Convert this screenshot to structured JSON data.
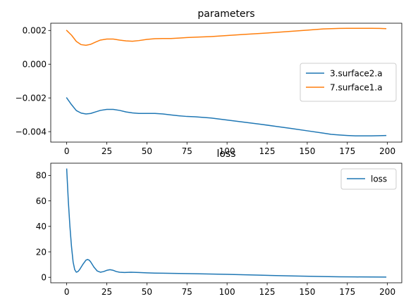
{
  "chart_data": [
    {
      "type": "line",
      "title": "parameters",
      "xlabel": "",
      "ylabel": "",
      "xlim": [
        -9.95,
        208.95
      ],
      "ylim": [
        -0.00462,
        0.00243
      ],
      "xticks": [
        0,
        25,
        50,
        75,
        100,
        125,
        150,
        175,
        200
      ],
      "yticks": [
        0.002,
        0.0,
        -0.002,
        -0.004
      ],
      "ytick_labels": [
        "0.002",
        "0.000",
        "−0.002",
        "−0.004"
      ],
      "grid": false,
      "legend": "center-right",
      "series": [
        {
          "name": "3.surface2.a",
          "color": "#1f77b4",
          "x": [
            0,
            3,
            6,
            9,
            12,
            15,
            18,
            21,
            25,
            29,
            33,
            37,
            41,
            45,
            50,
            55,
            60,
            65,
            70,
            75,
            80,
            90,
            100,
            110,
            120,
            130,
            140,
            150,
            160,
            165,
            170,
            175,
            180,
            185,
            190,
            195,
            199
          ],
          "y": [
            -0.002,
            -0.0024,
            -0.00275,
            -0.0029,
            -0.00295,
            -0.00292,
            -0.00283,
            -0.00274,
            -0.00268,
            -0.00268,
            -0.00274,
            -0.00283,
            -0.00289,
            -0.00292,
            -0.00292,
            -0.00292,
            -0.00295,
            -0.00301,
            -0.00306,
            -0.0031,
            -0.00312,
            -0.00319,
            -0.00331,
            -0.00343,
            -0.00355,
            -0.00368,
            -0.00381,
            -0.00395,
            -0.00409,
            -0.00416,
            -0.0042,
            -0.00423,
            -0.00425,
            -0.00425,
            -0.00425,
            -0.00424,
            -0.00423
          ]
        },
        {
          "name": "7.surface1.a",
          "color": "#ff7f0e",
          "x": [
            0,
            3,
            6,
            9,
            12,
            15,
            18,
            21,
            25,
            29,
            33,
            37,
            41,
            45,
            50,
            55,
            60,
            65,
            70,
            75,
            80,
            90,
            100,
            110,
            120,
            130,
            140,
            150,
            160,
            170,
            175,
            180,
            185,
            190,
            195,
            199
          ],
          "y": [
            0.002,
            0.00172,
            0.00135,
            0.00116,
            0.00112,
            0.00118,
            0.00131,
            0.00143,
            0.00149,
            0.00149,
            0.00143,
            0.00138,
            0.00136,
            0.0014,
            0.00147,
            0.00151,
            0.00152,
            0.00152,
            0.00155,
            0.00158,
            0.0016,
            0.00164,
            0.0017,
            0.00176,
            0.00182,
            0.00188,
            0.00195,
            0.00202,
            0.00209,
            0.00212,
            0.00213,
            0.00213,
            0.00213,
            0.00213,
            0.00212,
            0.00211
          ]
        }
      ]
    },
    {
      "type": "line",
      "title": "loss",
      "xlabel": "",
      "ylabel": "",
      "xlim": [
        -9.95,
        208.95
      ],
      "ylim": [
        -4.3,
        89.6
      ],
      "xticks": [
        0,
        25,
        50,
        75,
        100,
        125,
        150,
        175,
        200
      ],
      "yticks": [
        0,
        20,
        40,
        60,
        80
      ],
      "grid": false,
      "legend": "top-right",
      "series": [
        {
          "name": "loss",
          "color": "#1f77b4",
          "x": [
            0,
            1,
            2,
            3,
            4,
            5,
            6,
            7,
            8,
            10,
            12,
            13,
            14,
            15,
            17,
            19,
            21,
            23,
            25,
            27,
            29,
            31,
            33,
            36,
            40,
            45,
            50,
            55,
            60,
            70,
            80,
            100,
            120,
            140,
            160,
            170,
            180,
            199
          ],
          "y": [
            85,
            60,
            40,
            24,
            12,
            6,
            4,
            4.5,
            6,
            10,
            13.5,
            14,
            13.5,
            12,
            8,
            5,
            4,
            4.5,
            5.5,
            6,
            5.5,
            4.5,
            4,
            3.8,
            4,
            3.8,
            3.5,
            3.3,
            3.2,
            3,
            2.8,
            2.3,
            1.7,
            1.1,
            0.6,
            0.4,
            0.3,
            0.2
          ]
        }
      ]
    }
  ]
}
